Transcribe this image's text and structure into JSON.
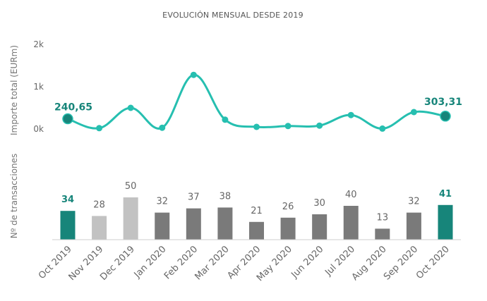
{
  "chart_data": [
    {
      "type": "line",
      "title": "EVOLUCIÓN MENSUAL DESDE 2019",
      "ylabel": "Importe total (EURm)",
      "yticks": [
        "2k",
        "1k",
        "0k"
      ],
      "ylim": [
        0,
        2000
      ],
      "categories": [
        "Oct 2019",
        "Nov 2019",
        "Dec 2019",
        "Jan 2020",
        "Feb 2020",
        "Mar 2020",
        "Apr 2020",
        "May 2020",
        "Jun 2020",
        "Jul 2020",
        "Aug 2020",
        "Sep 2020",
        "Oct 2020"
      ],
      "values": [
        240.65,
        20,
        500,
        30,
        1280,
        220,
        50,
        70,
        80,
        330,
        10,
        400,
        303.31
      ],
      "point_labels": {
        "first": "240,65",
        "last": "303,31"
      },
      "color": "#26bfb0",
      "grid": false
    },
    {
      "type": "bar",
      "ylabel": "Nº de transacciones",
      "categories": [
        "Oct 2019",
        "Nov 2019",
        "Dec 2019",
        "Jan 2020",
        "Feb 2020",
        "Mar 2020",
        "Apr 2020",
        "May 2020",
        "Jun 2020",
        "Jul 2020",
        "Aug 2020",
        "Sep 2020",
        "Oct 2020"
      ],
      "values": [
        34,
        28,
        50,
        32,
        37,
        38,
        21,
        26,
        30,
        40,
        13,
        32,
        41
      ],
      "value_labels": [
        "34",
        "28",
        "50",
        "32",
        "37",
        "38",
        "21",
        "26",
        "30",
        "40",
        "13",
        "32",
        "41"
      ],
      "bar_colors": [
        "#17857a",
        "#c2c2c2",
        "#c2c2c2",
        "#7a7a7a",
        "#7a7a7a",
        "#7a7a7a",
        "#7a7a7a",
        "#7a7a7a",
        "#7a7a7a",
        "#7a7a7a",
        "#7a7a7a",
        "#7a7a7a",
        "#17857a"
      ],
      "highlight_color": "#17857a"
    }
  ]
}
